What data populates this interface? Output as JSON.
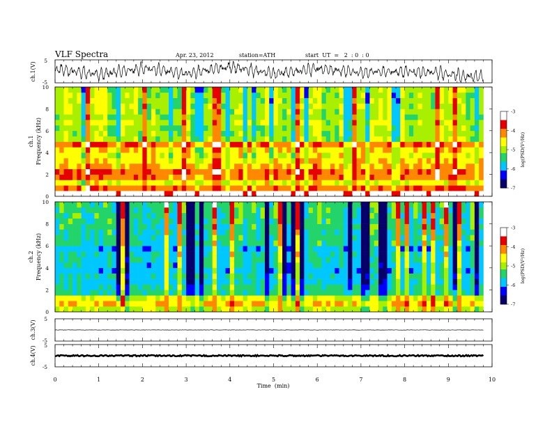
{
  "header": {
    "title": "VLF Spectra",
    "date": "Apr. 23, 2012",
    "station": "station=ATH",
    "start": "start  UT  =   2  : 0  : 0"
  },
  "colors": {
    "background": "#ffffff",
    "axes": "#000000",
    "spectrum_scale": [
      "#08006a",
      "#0000ff",
      "#00c8ff",
      "#22d46a",
      "#a8f000",
      "#ffff00",
      "#ff8800",
      "#e60000",
      "#ffffff"
    ]
  },
  "chart_data": [
    {
      "id": "ch1-waveform",
      "type": "line",
      "ylabel": "ch.1(V)",
      "ylim": [
        -5,
        5
      ],
      "yticks": [
        5,
        -5
      ],
      "xlim": [
        0,
        10
      ],
      "data_extent_min": 9.8,
      "description_series": "oscillating voltage waveform, roughly between -5 and 5 V, drifting slightly negative toward the end",
      "anchor_values": [
        {
          "t": 0.0,
          "v": 1.0
        },
        {
          "t": 1.0,
          "v": -1.5
        },
        {
          "t": 2.0,
          "v": 1.5
        },
        {
          "t": 3.0,
          "v": -1.0
        },
        {
          "t": 4.0,
          "v": 2.0
        },
        {
          "t": 5.0,
          "v": -1.0
        },
        {
          "t": 6.0,
          "v": 1.0
        },
        {
          "t": 7.0,
          "v": -0.5
        },
        {
          "t": 8.0,
          "v": 0.0
        },
        {
          "t": 9.0,
          "v": -1.0
        },
        {
          "t": 9.5,
          "v": -2.5
        },
        {
          "t": 9.8,
          "v": -2.0
        }
      ]
    },
    {
      "id": "ch1-spectrogram",
      "type": "heatmap",
      "ylabel": "ch.1\nFrequency  (kHz)",
      "ylabel_line1": "ch.1",
      "ylabel_line2": "Frequency  (kHz)",
      "ylim": [
        0,
        10
      ],
      "yticks": [
        0,
        2,
        4,
        6,
        8,
        10
      ],
      "xlim": [
        0,
        10
      ],
      "data_extent_min": 9.8,
      "colorbar": {
        "label": "log(PSD(V²/Hz)",
        "range": [
          -7,
          -3
        ],
        "ticks": [
          -3,
          -4,
          -5,
          -6,
          -7
        ]
      },
      "frequency_profile_log_psd": [
        {
          "f": 0.25,
          "v": -3.2
        },
        {
          "f": 0.75,
          "v": -4.0
        },
        {
          "f": 1.25,
          "v": -4.6
        },
        {
          "f": 1.75,
          "v": -4.0
        },
        {
          "f": 2.25,
          "v": -3.9
        },
        {
          "f": 2.75,
          "v": -4.2
        },
        {
          "f": 3.25,
          "v": -4.4
        },
        {
          "f": 3.75,
          "v": -4.6
        },
        {
          "f": 4.25,
          "v": -4.4
        },
        {
          "f": 4.75,
          "v": -3.9
        },
        {
          "f": 5.25,
          "v": -4.9
        },
        {
          "f": 5.75,
          "v": -5.0
        },
        {
          "f": 6.25,
          "v": -5.0
        },
        {
          "f": 6.75,
          "v": -4.8
        },
        {
          "f": 7.25,
          "v": -5.0
        },
        {
          "f": 7.75,
          "v": -4.9
        },
        {
          "f": 8.25,
          "v": -4.9
        },
        {
          "f": 8.75,
          "v": -4.9
        },
        {
          "f": 9.25,
          "v": -4.9
        },
        {
          "f": 9.75,
          "v": -4.9
        }
      ]
    },
    {
      "id": "ch2-spectrogram",
      "type": "heatmap",
      "ylabel_line1": "ch.2",
      "ylabel_line2": "Frequency  (kHz)",
      "ylim": [
        0,
        10
      ],
      "yticks": [
        0,
        2,
        4,
        6,
        8,
        10
      ],
      "xlim": [
        0,
        10
      ],
      "data_extent_min": 9.8,
      "colorbar": {
        "label": "log(PSD(V²/Hz)",
        "range": [
          -7,
          -3
        ],
        "ticks": [
          -3,
          -4,
          -5,
          -6,
          -7
        ]
      },
      "frequency_profile_log_psd": [
        {
          "f": 0.25,
          "v": -4.8
        },
        {
          "f": 0.75,
          "v": -4.4
        },
        {
          "f": 1.25,
          "v": -4.7
        },
        {
          "f": 1.75,
          "v": -5.6
        },
        {
          "f": 2.25,
          "v": -5.6
        },
        {
          "f": 2.75,
          "v": -5.8
        },
        {
          "f": 3.25,
          "v": -5.7
        },
        {
          "f": 3.75,
          "v": -5.9
        },
        {
          "f": 4.25,
          "v": -5.8
        },
        {
          "f": 4.75,
          "v": -5.7
        },
        {
          "f": 5.25,
          "v": -5.7
        },
        {
          "f": 5.75,
          "v": -5.9
        },
        {
          "f": 6.25,
          "v": -5.6
        },
        {
          "f": 6.75,
          "v": -5.6
        },
        {
          "f": 7.25,
          "v": -5.6
        },
        {
          "f": 7.75,
          "v": -5.5
        },
        {
          "f": 8.25,
          "v": -5.5
        },
        {
          "f": 8.75,
          "v": -5.5
        },
        {
          "f": 9.25,
          "v": -5.4
        },
        {
          "f": 9.75,
          "v": -5.4
        }
      ]
    },
    {
      "id": "ch3-waveform",
      "type": "line",
      "ylabel": "ch.3(V)",
      "ylim": [
        -5,
        5
      ],
      "yticks": [
        5,
        -5
      ],
      "xlim": [
        0,
        10
      ],
      "data_extent_min": 9.8,
      "constant_value": 0.0
    },
    {
      "id": "ch4-waveform",
      "type": "line",
      "ylabel": "ch.4(V)",
      "ylim": [
        -5,
        5
      ],
      "yticks": [
        5,
        -5
      ],
      "xlim": [
        0,
        10
      ],
      "data_extent_min": 9.8,
      "constant_value": 0.0
    }
  ],
  "x_axis": {
    "label": "Time  (min)",
    "ticks": [
      "0",
      "1",
      "2",
      "3",
      "4",
      "5",
      "6",
      "7",
      "8",
      "9",
      "10"
    ]
  }
}
